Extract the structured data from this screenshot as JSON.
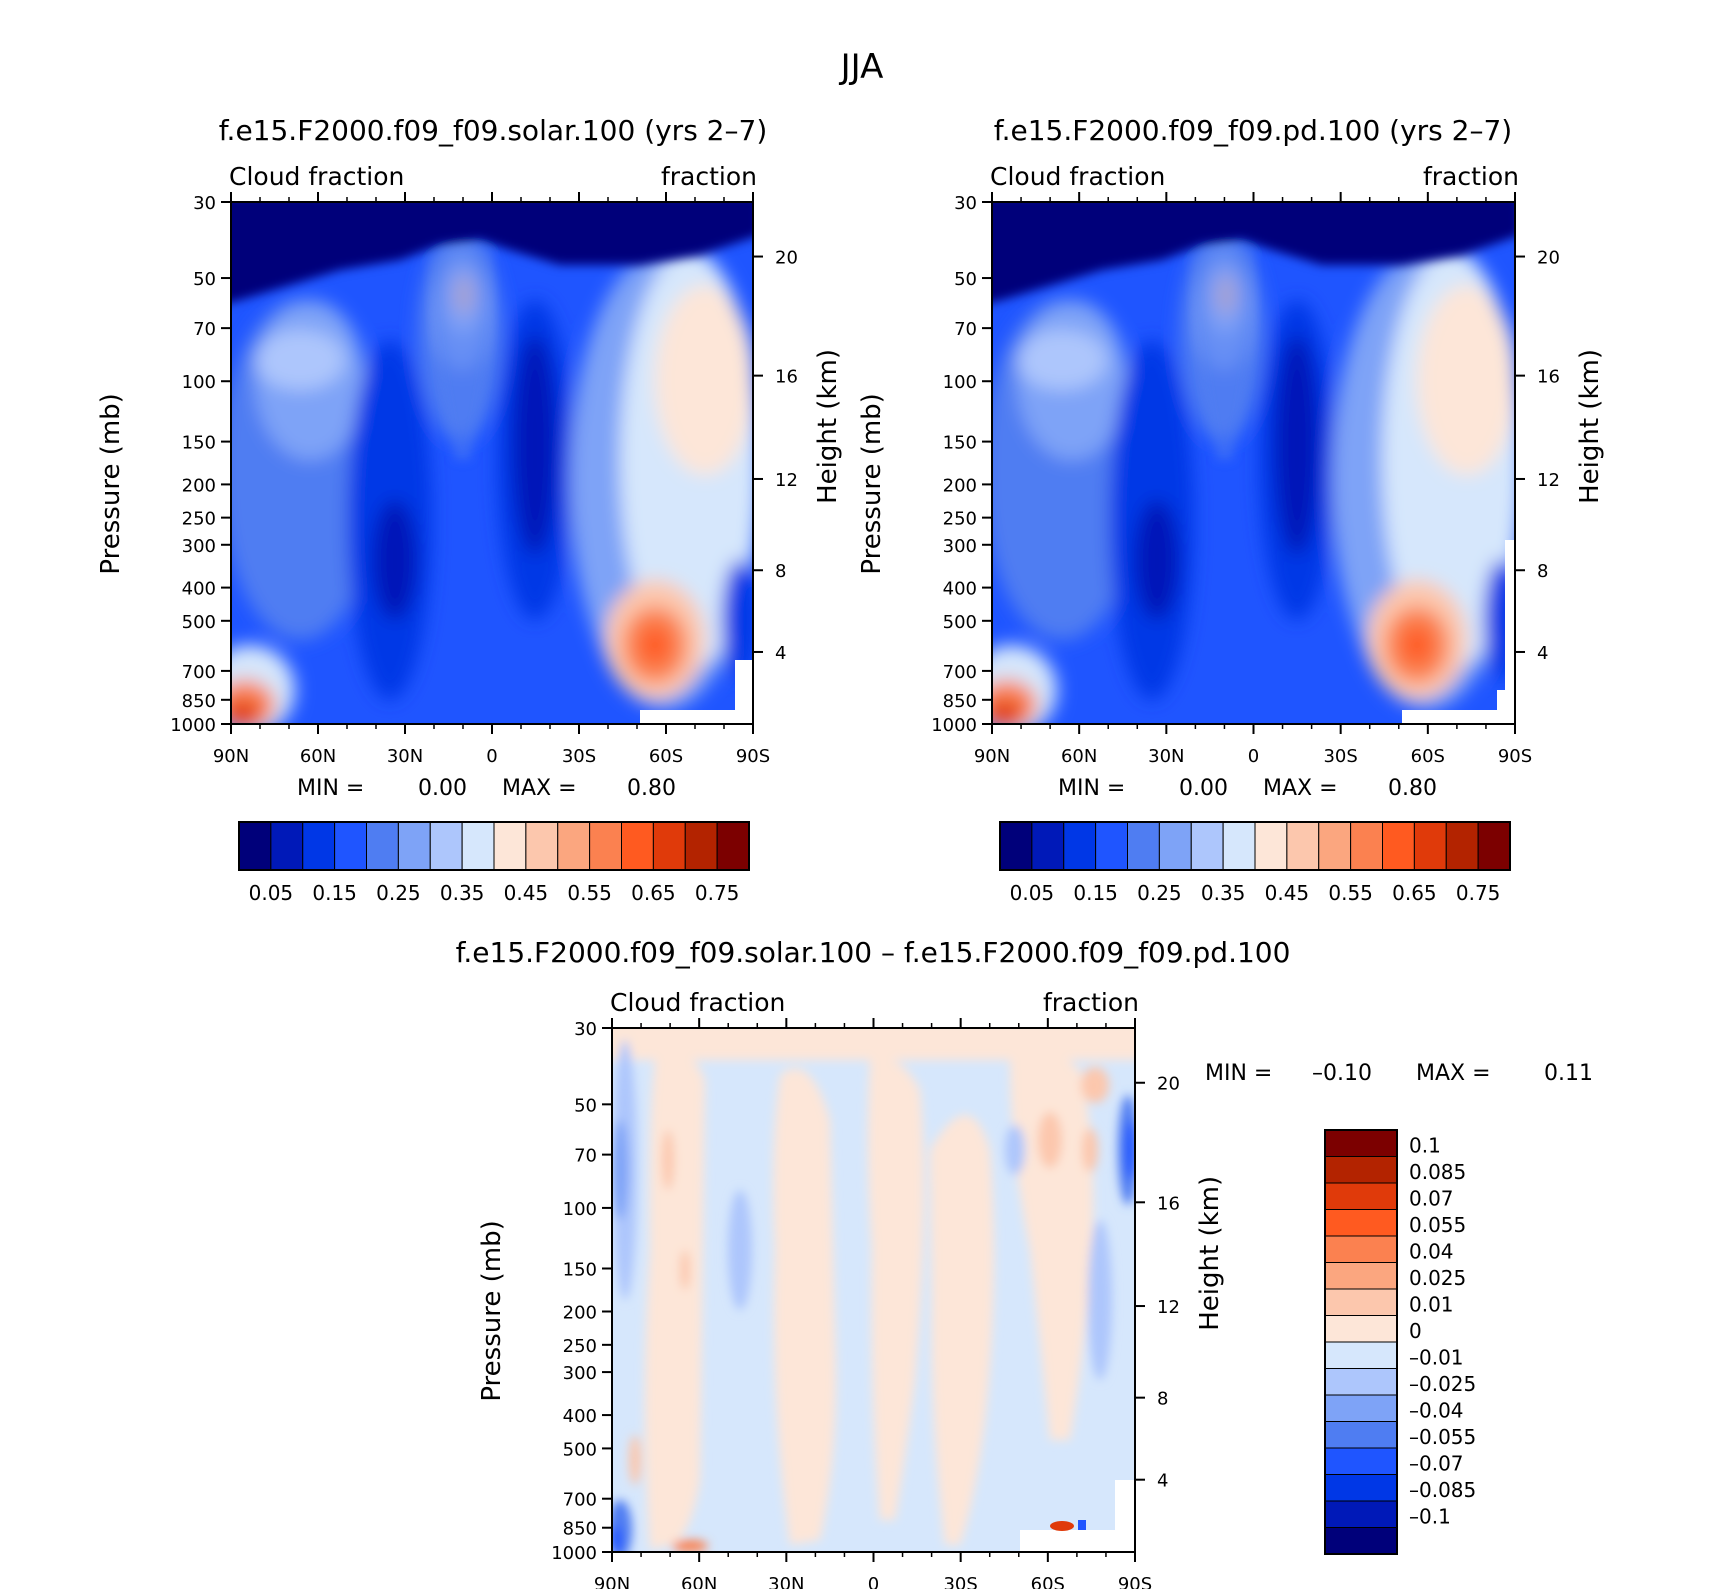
{
  "figure": {
    "title": "JJA"
  },
  "chart_data": [
    {
      "type": "heatmap",
      "title": "f.e15.F2000.f09_f09.solar.100 (yrs 2–7)",
      "left_label": "Cloud fraction",
      "right_label": "fraction",
      "xlabel": "",
      "ylabel": "Pressure (mb)",
      "ylabel_right": "Height (km)",
      "x_ticks": [
        "90N",
        "60N",
        "30N",
        "0",
        "30S",
        "60S",
        "90S"
      ],
      "x_range": [
        90,
        -90
      ],
      "y_ticks": [
        30,
        50,
        70,
        100,
        150,
        200,
        250,
        300,
        400,
        500,
        700,
        850,
        1000
      ],
      "y_range": [
        30,
        1000
      ],
      "y_scale": "log",
      "height_ticks": [
        4,
        8,
        12,
        16,
        20
      ],
      "min_label": "MIN =",
      "min_value": "0.00",
      "max_label": "MAX =",
      "max_value": "0.80",
      "colorbar": {
        "orientation": "horizontal",
        "levels": [
          "0.05",
          "0.15",
          "0.25",
          "0.35",
          "0.45",
          "0.55",
          "0.65",
          "0.75"
        ],
        "colors": [
          "#00007a",
          "#0019b8",
          "#0037e6",
          "#1f55ff",
          "#4f7df2",
          "#7ea3f7",
          "#adc6fc",
          "#d6e7fc",
          "#fde6d8",
          "#fcc7ad",
          "#fba67f",
          "#fb8150",
          "#ff5a20",
          "#e03a0a",
          "#b32300",
          "#7c0000"
        ]
      }
    },
    {
      "type": "heatmap",
      "title": "f.e15.F2000.f09_f09.pd.100 (yrs 2–7)",
      "left_label": "Cloud fraction",
      "right_label": "fraction",
      "xlabel": "",
      "ylabel": "Pressure (mb)",
      "ylabel_right": "Height (km)",
      "x_ticks": [
        "90N",
        "60N",
        "30N",
        "0",
        "30S",
        "60S",
        "90S"
      ],
      "x_range": [
        90,
        -90
      ],
      "y_ticks": [
        30,
        50,
        70,
        100,
        150,
        200,
        250,
        300,
        400,
        500,
        700,
        850,
        1000
      ],
      "y_range": [
        30,
        1000
      ],
      "y_scale": "log",
      "height_ticks": [
        4,
        8,
        12,
        16,
        20
      ],
      "min_label": "MIN =",
      "min_value": "0.00",
      "max_label": "MAX =",
      "max_value": "0.80",
      "colorbar": {
        "orientation": "horizontal",
        "levels": [
          "0.05",
          "0.15",
          "0.25",
          "0.35",
          "0.45",
          "0.55",
          "0.65",
          "0.75"
        ],
        "colors": [
          "#00007a",
          "#0019b8",
          "#0037e6",
          "#1f55ff",
          "#4f7df2",
          "#7ea3f7",
          "#adc6fc",
          "#d6e7fc",
          "#fde6d8",
          "#fcc7ad",
          "#fba67f",
          "#fb8150",
          "#ff5a20",
          "#e03a0a",
          "#b32300",
          "#7c0000"
        ]
      }
    },
    {
      "type": "heatmap",
      "title": "f.e15.F2000.f09_f09.solar.100 – f.e15.F2000.f09_f09.pd.100",
      "left_label": "Cloud fraction",
      "right_label": "fraction",
      "xlabel": "",
      "ylabel": "Pressure (mb)",
      "ylabel_right": "Height (km)",
      "x_ticks": [
        "90N",
        "60N",
        "30N",
        "0",
        "30S",
        "60S",
        "90S"
      ],
      "x_range": [
        90,
        -90
      ],
      "y_ticks": [
        30,
        50,
        70,
        100,
        150,
        200,
        250,
        300,
        400,
        500,
        700,
        850,
        1000
      ],
      "y_range": [
        30,
        1000
      ],
      "y_scale": "log",
      "height_ticks": [
        4,
        8,
        12,
        16,
        20
      ],
      "min_label": "MIN =",
      "min_value": "–0.10",
      "max_label": "MAX =",
      "max_value": "0.11",
      "colorbar": {
        "orientation": "vertical",
        "levels": [
          "0.1",
          "0.085",
          "0.07",
          "0.055",
          "0.04",
          "0.025",
          "0.01",
          "0",
          "–0.01",
          "–0.025",
          "–0.04",
          "–0.055",
          "–0.07",
          "–0.085",
          "–0.1"
        ],
        "colors": [
          "#7c0000",
          "#b32300",
          "#e03a0a",
          "#ff5a20",
          "#fb8150",
          "#fba67f",
          "#fcc7ad",
          "#fde6d8",
          "#d6e7fc",
          "#adc6fc",
          "#7ea3f7",
          "#4f7df2",
          "#1f55ff",
          "#0037e6",
          "#0019b8",
          "#00007a"
        ]
      }
    }
  ]
}
